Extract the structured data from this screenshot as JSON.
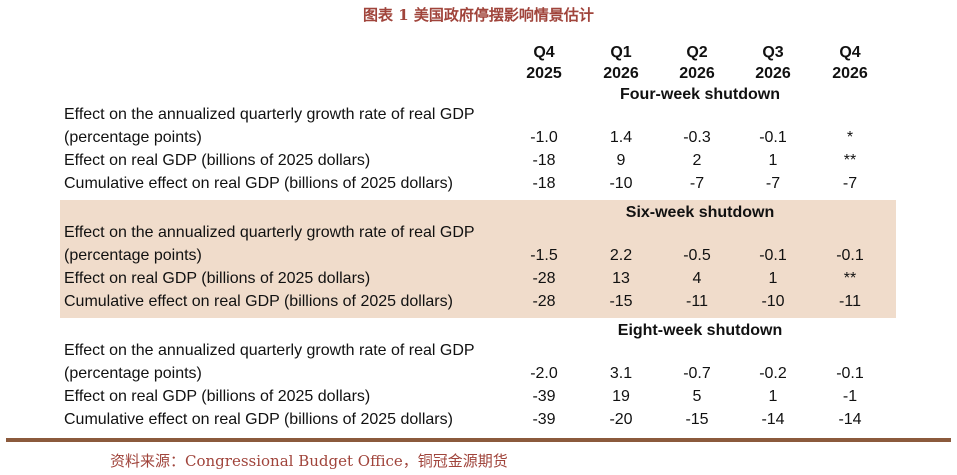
{
  "title": "图表 1  美国政府停摆影响情景估计",
  "columns": [
    {
      "quarter": "Q4",
      "year": "2025"
    },
    {
      "quarter": "Q1",
      "year": "2026"
    },
    {
      "quarter": "Q2",
      "year": "2026"
    },
    {
      "quarter": "Q3",
      "year": "2026"
    },
    {
      "quarter": "Q4",
      "year": "2026"
    }
  ],
  "scenarios": [
    {
      "name": "Four-week shutdown",
      "rows": [
        {
          "label_line1": "Effect on the annualized quarterly growth rate of real GDP",
          "label_line2": "(percentage points)",
          "values": [
            "-1.0",
            "1.4",
            "-0.3",
            "-0.1",
            "*"
          ]
        },
        {
          "label_line1": "Effect on real GDP (billions of 2025 dollars)",
          "values": [
            "-18",
            "9",
            "2",
            "1",
            "**"
          ]
        },
        {
          "label_line1": "Cumulative effect on real GDP (billions of 2025 dollars)",
          "values": [
            "-18",
            "-10",
            "-7",
            "-7",
            "-7"
          ]
        }
      ]
    },
    {
      "name": "Six-week shutdown",
      "rows": [
        {
          "label_line1": "Effect on the annualized quarterly growth rate of real GDP",
          "label_line2": "(percentage points)",
          "values": [
            "-1.5",
            "2.2",
            "-0.5",
            "-0.1",
            "-0.1"
          ]
        },
        {
          "label_line1": "Effect on real GDP (billions of 2025 dollars)",
          "values": [
            "-28",
            "13",
            "4",
            "1",
            "**"
          ]
        },
        {
          "label_line1": "Cumulative effect on real GDP (billions of 2025 dollars)",
          "values": [
            "-28",
            "-15",
            "-11",
            "-10",
            "-11"
          ]
        }
      ]
    },
    {
      "name": "Eight-week shutdown",
      "rows": [
        {
          "label_line1": "Effect on the annualized quarterly growth rate of real GDP",
          "label_line2": "(percentage points)",
          "values": [
            "-2.0",
            "3.1",
            "-0.7",
            "-0.2",
            "-0.1"
          ]
        },
        {
          "label_line1": "Effect on real GDP (billions of 2025 dollars)",
          "values": [
            "-39",
            "19",
            "5",
            "1",
            "-1"
          ]
        },
        {
          "label_line1": "Cumulative effect on real GDP (billions of 2025 dollars)",
          "values": [
            "-39",
            "-20",
            "-15",
            "-14",
            "-14"
          ]
        }
      ]
    }
  ],
  "source": "资料来源：Congressional Budget Office，铜冠金源期货",
  "colors": {
    "title": "#a0443b",
    "band": "#f0dccb",
    "rule": "#8b5a3c"
  }
}
